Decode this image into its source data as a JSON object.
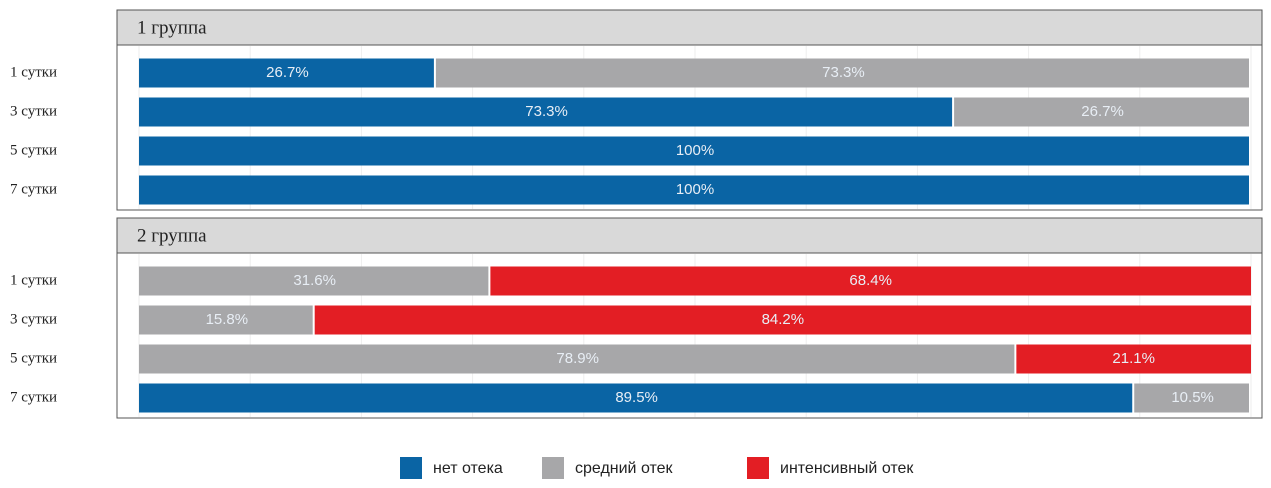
{
  "chart_data": [
    {
      "type": "bar",
      "orientation": "horizontal",
      "stacked": true,
      "title": "1 группа",
      "categories": [
        "1 сутки",
        "3 сутки",
        "5 сутки",
        "7 сутки"
      ],
      "series": [
        {
          "name": "нет отека",
          "color": "#0a64a4",
          "values": [
            26.7,
            73.3,
            100,
            100
          ],
          "value_labels": [
            "26.7%",
            "73.3%",
            "100%",
            "100%"
          ]
        },
        {
          "name": "средний отек",
          "color": "#a7a7a9",
          "values": [
            73.3,
            26.7,
            0,
            0
          ],
          "value_labels": [
            "73.3%",
            "26.7%",
            null,
            null
          ]
        },
        {
          "name": "интенсивный отек",
          "color": "#e31e24",
          "values": [
            0,
            0,
            0,
            0
          ],
          "value_labels": [
            null,
            null,
            null,
            null
          ]
        }
      ],
      "xlim": [
        0,
        100
      ],
      "xticks": [
        0,
        10,
        20,
        30,
        40,
        50,
        60,
        70,
        80,
        90,
        100
      ],
      "grid": true,
      "legend": "bottom"
    },
    {
      "type": "bar",
      "orientation": "horizontal",
      "stacked": true,
      "title": "2 группа",
      "categories": [
        "1 сутки",
        "3 сутки",
        "5 сутки",
        "7 сутки"
      ],
      "series": [
        {
          "name": "нет отека",
          "color": "#0a64a4",
          "values": [
            0,
            0,
            0,
            89.5
          ],
          "value_labels": [
            null,
            null,
            null,
            "89.5%"
          ]
        },
        {
          "name": "средний отек",
          "color": "#a7a7a9",
          "values": [
            31.6,
            15.8,
            78.9,
            10.5
          ],
          "value_labels": [
            "31.6%",
            "15.8%",
            "78.9%",
            "10.5%"
          ]
        },
        {
          "name": "интенсивный отек",
          "color": "#e31e24",
          "values": [
            68.4,
            84.2,
            21.1,
            0
          ],
          "value_labels": [
            "68.4%",
            "84.2%",
            "21.1%",
            null
          ]
        }
      ],
      "xlim": [
        0,
        100
      ],
      "xticks": [
        0,
        10,
        20,
        30,
        40,
        50,
        60,
        70,
        80,
        90,
        100
      ],
      "grid": true
    }
  ]
}
